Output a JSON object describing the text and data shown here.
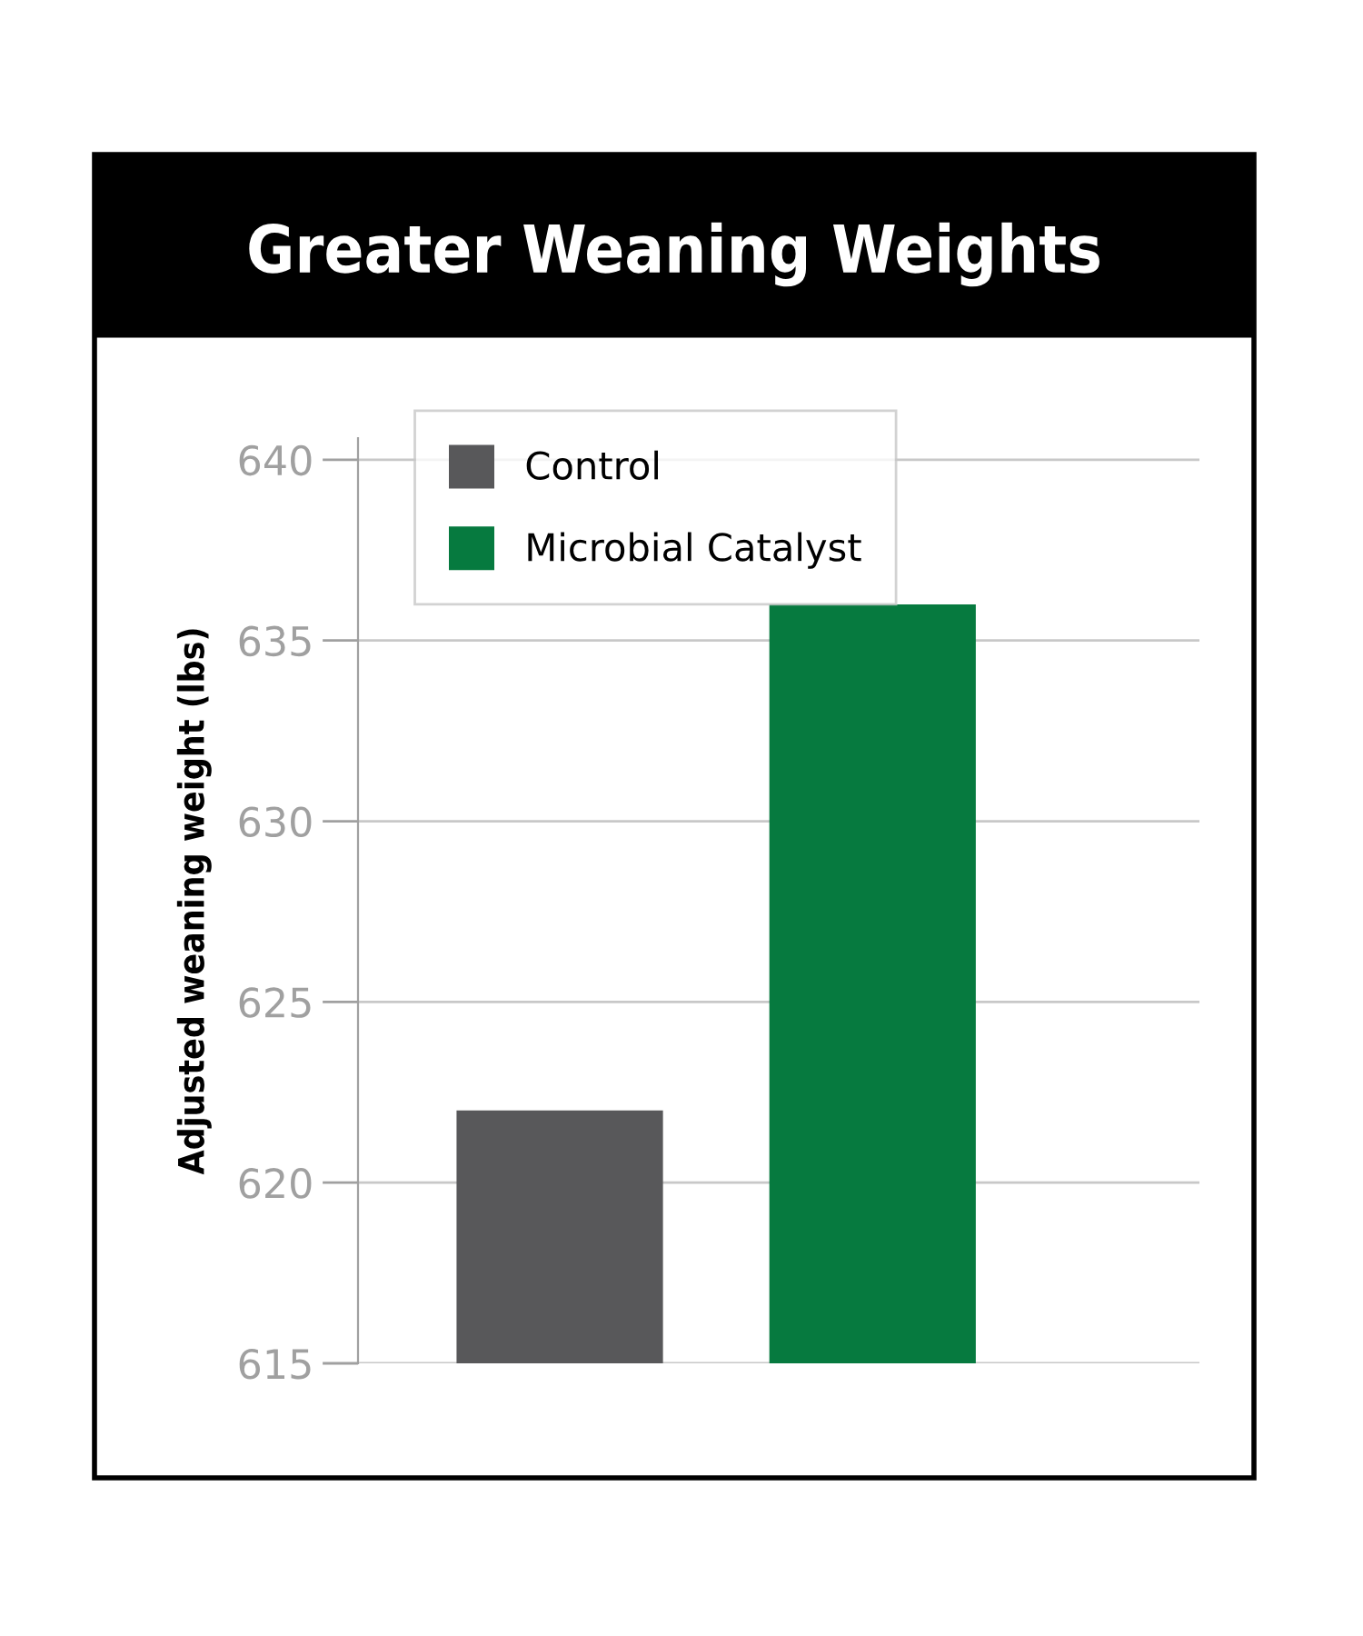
{
  "chart_data": {
    "type": "bar",
    "title": "Greater Weaning Weights",
    "ylabel": "Adjusted weaning weight (lbs)",
    "categories": [
      null,
      null
    ],
    "series": [
      {
        "name": "Control",
        "color": "#58585a",
        "values": [
          622,
          null
        ]
      },
      {
        "name": "Microbial Catalyst",
        "color": "#067a3f",
        "values": [
          null,
          636
        ]
      }
    ],
    "ylim": [
      615,
      640.6
    ],
    "yticks": [
      615,
      620,
      625,
      630,
      635,
      640
    ],
    "grid": "y",
    "legend": "top left"
  }
}
